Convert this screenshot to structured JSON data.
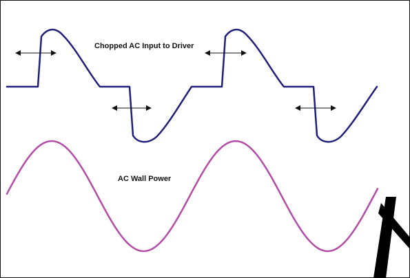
{
  "labels": {
    "chopped": "Chopped AC Input to Driver",
    "wall": "AC Wall Power"
  },
  "colors": {
    "chopped_wave": "#1f1f7a",
    "wall_wave": "#b34ca6",
    "arrow": "#111111",
    "frame": "#111111"
  },
  "icons": {
    "phase_marker": "double-headed-horizontal-arrow"
  }
}
